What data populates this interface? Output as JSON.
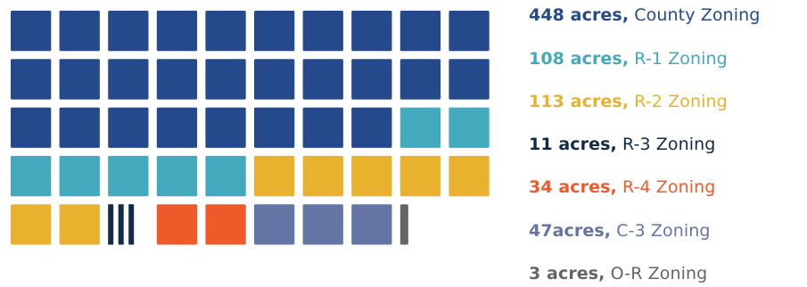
{
  "chart_data": {
    "type": "waffle",
    "unit": "acres",
    "categories": [
      {
        "label": "County Zoning",
        "value": 448,
        "value_text": "448 acres,",
        "color": "#244a8c"
      },
      {
        "label": "R-1 Zoning",
        "value": 108,
        "value_text": "108 acres,",
        "color": "#43a9bd"
      },
      {
        "label": "R-2 Zoning",
        "value": 113,
        "value_text": "113 acres,",
        "color": "#e8b22e"
      },
      {
        "label": "R-3 Zoning",
        "value": 11,
        "value_text": "11 acres,",
        "color": "#11294b"
      },
      {
        "label": "R-4 Zoning",
        "value": 34,
        "value_text": "34 acres,",
        "color": "#ef5a2a"
      },
      {
        "label": "C-3 Zoning",
        "value": 47,
        "value_text": "47acres,",
        "color": "#6474a5"
      },
      {
        "label": "O-R Zoning",
        "value": 3,
        "value_text": "3 acres,",
        "color": "#646569"
      }
    ],
    "cells": [
      {
        "category": 0,
        "fraction": 1
      },
      {
        "category": 0,
        "fraction": 1
      },
      {
        "category": 0,
        "fraction": 1
      },
      {
        "category": 0,
        "fraction": 1
      },
      {
        "category": 0,
        "fraction": 1
      },
      {
        "category": 0,
        "fraction": 1
      },
      {
        "category": 0,
        "fraction": 1
      },
      {
        "category": 0,
        "fraction": 1
      },
      {
        "category": 0,
        "fraction": 1
      },
      {
        "category": 0,
        "fraction": 1
      },
      {
        "category": 0,
        "fraction": 1
      },
      {
        "category": 0,
        "fraction": 1
      },
      {
        "category": 0,
        "fraction": 1
      },
      {
        "category": 0,
        "fraction": 1
      },
      {
        "category": 0,
        "fraction": 1
      },
      {
        "category": 0,
        "fraction": 1
      },
      {
        "category": 0,
        "fraction": 1
      },
      {
        "category": 0,
        "fraction": 1
      },
      {
        "category": 0,
        "fraction": 1
      },
      {
        "category": 0,
        "fraction": 1
      },
      {
        "category": 0,
        "fraction": 1
      },
      {
        "category": 0,
        "fraction": 1
      },
      {
        "category": 0,
        "fraction": 1
      },
      {
        "category": 0,
        "fraction": 1
      },
      {
        "category": 0,
        "fraction": 1
      },
      {
        "category": 0,
        "fraction": 1
      },
      {
        "category": 0,
        "fraction": 1
      },
      {
        "category": 0,
        "fraction": 1
      },
      {
        "category": 1,
        "fraction": 1
      },
      {
        "category": 1,
        "fraction": 1
      },
      {
        "category": 1,
        "fraction": 1
      },
      {
        "category": 1,
        "fraction": 1
      },
      {
        "category": 1,
        "fraction": 1
      },
      {
        "category": 1,
        "fraction": 1
      },
      {
        "category": 1,
        "fraction": 1
      },
      {
        "category": 2,
        "fraction": 1
      },
      {
        "category": 2,
        "fraction": 1
      },
      {
        "category": 2,
        "fraction": 1
      },
      {
        "category": 2,
        "fraction": 1
      },
      {
        "category": 2,
        "fraction": 1
      },
      {
        "category": 2,
        "fraction": 1
      },
      {
        "category": 2,
        "fraction": 1
      },
      {
        "category": 3,
        "fraction": 0.7
      },
      {
        "category": 4,
        "fraction": 1
      },
      {
        "category": 4,
        "fraction": 1
      },
      {
        "category": 5,
        "fraction": 1
      },
      {
        "category": 5,
        "fraction": 1
      },
      {
        "category": 5,
        "fraction": 1
      },
      {
        "category": 6,
        "fraction": 0.2
      }
    ]
  }
}
